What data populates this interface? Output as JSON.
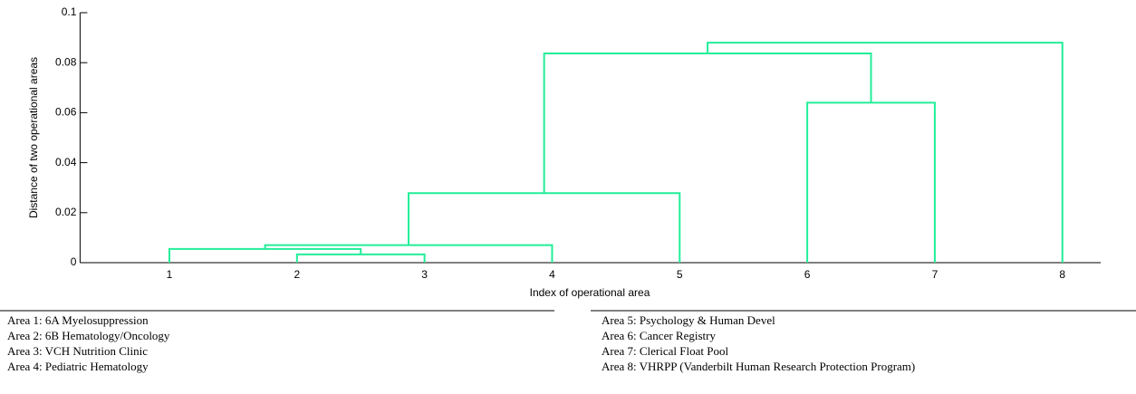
{
  "chart_data": {
    "type": "dendrogram",
    "xlabel": "Index of operational area",
    "ylabel": "Distance of two operational areas",
    "xlim": [
      0.3,
      8.3
    ],
    "xticks": [
      1,
      2,
      3,
      4,
      5,
      6,
      7,
      8
    ],
    "ylim": [
      0,
      0.1
    ],
    "yticks": [
      0,
      0.02,
      0.04,
      0.06,
      0.08,
      0.1
    ],
    "color": "#22ee99",
    "merges": [
      {
        "left": 2,
        "right": 3,
        "height": 0.0033
      },
      {
        "left": 1,
        "right": 9,
        "height": 0.0055
      },
      {
        "left": 4,
        "right": 10,
        "height": 0.007
      },
      {
        "left": 5,
        "right": 11,
        "height": 0.0278
      },
      {
        "left": 6,
        "right": 7,
        "height": 0.064
      },
      {
        "left": 12,
        "right": 13,
        "height": 0.0837
      },
      {
        "left": 8,
        "right": 14,
        "height": 0.088
      }
    ]
  },
  "notes": [
    "Area 1: 6A Myelosuppression",
    "Area 2: 6B Hematology/Oncology",
    "Area 3: VCH Nutrition Clinic",
    "Area 4: Pediatric Hematology",
    "Area 5: Psychology & Human Devel",
    "Area 6: Cancer Registry",
    "Area 7: Clerical Float Pool",
    "Area 8: VHRPP (Vanderbilt Human Research Protection Program)"
  ]
}
